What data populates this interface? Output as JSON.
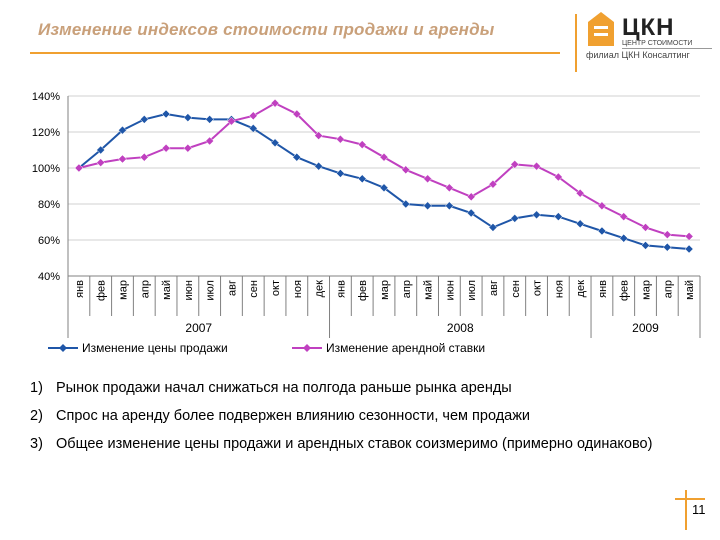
{
  "header": {
    "title": "Изменение индексов стоимости продажи и аренды",
    "logo_name": "ЦКН",
    "logo_sub": "ЦЕНТР СТОИМОСТИ",
    "logo_sub2": "филиал ЦКН Консалтинг",
    "accent_color": "#f0a030"
  },
  "chart_data": {
    "type": "line",
    "categories": [
      "янв",
      "фев",
      "мар",
      "апр",
      "май",
      "июн",
      "июл",
      "авг",
      "сен",
      "окт",
      "ноя",
      "дек",
      "янв",
      "фев",
      "мар",
      "апр",
      "май",
      "июн",
      "июл",
      "авг",
      "сен",
      "окт",
      "ноя",
      "дек",
      "янв",
      "фев",
      "мар",
      "апр",
      "май"
    ],
    "groups": [
      {
        "label": "2007",
        "start": 0,
        "end": 11
      },
      {
        "label": "2008",
        "start": 12,
        "end": 23
      },
      {
        "label": "2009",
        "start": 24,
        "end": 28
      }
    ],
    "y_ticks": [
      "40%",
      "60%",
      "80%",
      "100%",
      "120%",
      "140%"
    ],
    "ylim": [
      40,
      140
    ],
    "grid": true,
    "legend_position": "bottom",
    "series": [
      {
        "name": "Изменение цены продажи",
        "color": "#1f56a8",
        "marker": "diamond",
        "values": [
          100,
          110,
          121,
          127,
          130,
          128,
          127,
          127,
          122,
          114,
          106,
          101,
          97,
          94,
          89,
          80,
          79,
          79,
          75,
          67,
          72,
          74,
          73,
          69,
          65,
          61,
          57,
          56,
          55
        ]
      },
      {
        "name": "Изменение  арендной ставки",
        "color": "#c040c0",
        "marker": "diamond",
        "values": [
          100,
          103,
          105,
          106,
          111,
          111,
          115,
          126,
          129,
          136,
          130,
          118,
          116,
          113,
          106,
          99,
          94,
          89,
          84,
          91,
          102,
          101,
          95,
          86,
          79,
          73,
          67,
          63,
          62
        ]
      }
    ]
  },
  "notes": [
    {
      "num": "1)",
      "text": "Рынок продажи начал снижаться на полгода раньше рынка аренды"
    },
    {
      "num": "2)",
      "text": "Спрос на аренду более подвержен влиянию сезонности, чем продажи"
    },
    {
      "num": "3)",
      "text": "Общее изменение цены продажи и арендных ставок соизмеримо (примерно одинаково)"
    }
  ],
  "page_number": "11"
}
